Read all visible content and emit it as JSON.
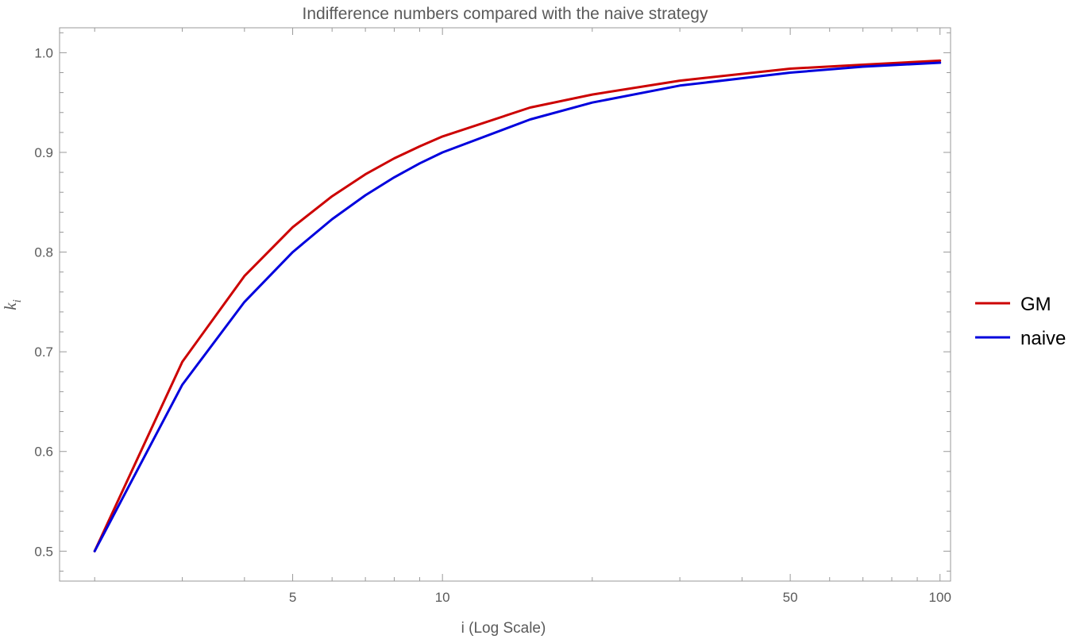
{
  "chart_data": {
    "type": "line",
    "title": "Indifference numbers compared with the naive strategy",
    "xlabel": "i (Log Scale)",
    "ylabel": "k",
    "ylabel_subscript": "i",
    "x_scale": "log",
    "xlim": [
      1.7,
      105
    ],
    "ylim": [
      0.47,
      1.025
    ],
    "x_ticks": [
      {
        "value": 5,
        "label": "5"
      },
      {
        "value": 10,
        "label": "10"
      },
      {
        "value": 50,
        "label": "50"
      },
      {
        "value": 100,
        "label": "100"
      }
    ],
    "y_ticks": [
      {
        "value": 0.5,
        "label": "0.5"
      },
      {
        "value": 0.6,
        "label": "0.6"
      },
      {
        "value": 0.7,
        "label": "0.7"
      },
      {
        "value": 0.8,
        "label": "0.8"
      },
      {
        "value": 0.9,
        "label": "0.9"
      },
      {
        "value": 1.0,
        "label": "1.0"
      }
    ],
    "x": [
      2,
      3,
      4,
      5,
      6,
      7,
      8,
      9,
      10,
      15,
      20,
      30,
      50,
      70,
      100
    ],
    "series": [
      {
        "name": "GM",
        "color": "#cc0000",
        "values": [
          0.5,
          0.69,
          0.776,
          0.825,
          0.856,
          0.878,
          0.894,
          0.906,
          0.916,
          0.945,
          0.958,
          0.972,
          0.984,
          0.988,
          0.992
        ]
      },
      {
        "name": "naive",
        "color": "#0000dd",
        "values": [
          0.5,
          0.667,
          0.75,
          0.8,
          0.833,
          0.857,
          0.875,
          0.889,
          0.9,
          0.933,
          0.95,
          0.967,
          0.98,
          0.986,
          0.99
        ]
      }
    ],
    "grid": false,
    "legend_position": "right"
  }
}
